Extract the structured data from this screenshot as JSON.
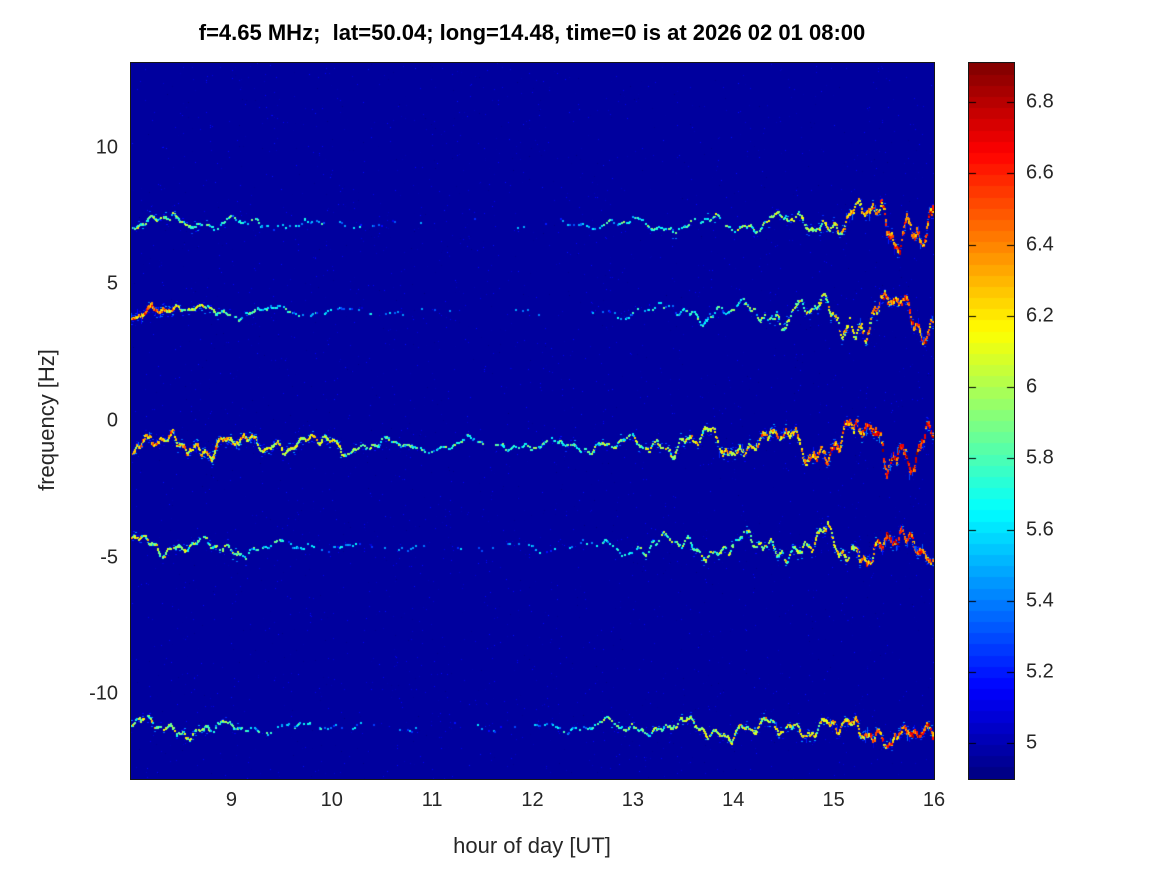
{
  "chart_data": {
    "type": "heatmap",
    "subtype": "doppler-shift-spectrogram",
    "title": "f=4.65 MHz;  lat=50.04; long=14.48, time=0 is at 2026 02 01 08:00",
    "xlabel": "hour of day [UT]",
    "ylabel": "frequency [Hz]",
    "xlim": [
      8,
      16
    ],
    "ylim": [
      -13.1,
      13.1
    ],
    "xticks": [
      9,
      10,
      11,
      12,
      13,
      14,
      15,
      16
    ],
    "yticks": [
      10,
      5,
      0,
      -5,
      -10
    ],
    "grid": false,
    "legend": "none",
    "colormap": "jet",
    "figure_background": "#ffffff",
    "plot_background_navy": "#0b0b9c",
    "axis_color": "#262626",
    "colorbar": {
      "position": "right",
      "min": 4.9,
      "max": 6.91,
      "ticks": [
        5,
        5.2,
        5.4,
        5.6,
        5.8,
        6,
        6.2,
        6.4,
        6.6,
        6.8
      ],
      "levels": 64
    },
    "noise_floor_value": 4.96,
    "traces_note": "five horizontal wavy Doppler traces; points are [hour, freq_offset_Hz, intensity_0to1, wiggle_amp_Hz] read from image",
    "traces": [
      {
        "name": "trace-plus7Hz",
        "center_hz": 7.2,
        "points": [
          [
            8.0,
            0.1,
            0.5,
            0.15
          ],
          [
            8.8,
            0.05,
            0.42,
            0.15
          ],
          [
            9.6,
            0.0,
            0.28,
            0.12
          ],
          [
            10.6,
            0.0,
            0.13,
            0.1
          ],
          [
            11.8,
            0.0,
            0.1,
            0.1
          ],
          [
            12.7,
            0.0,
            0.32,
            0.1
          ],
          [
            13.6,
            0.0,
            0.45,
            0.15
          ],
          [
            14.5,
            0.0,
            0.5,
            0.2
          ],
          [
            15.0,
            0.0,
            0.6,
            0.3
          ],
          [
            15.4,
            0.1,
            0.75,
            0.45
          ],
          [
            15.65,
            0.3,
            0.85,
            0.6
          ],
          [
            15.8,
            -0.5,
            0.8,
            0.5
          ],
          [
            16.0,
            -0.1,
            0.9,
            0.5
          ]
        ]
      },
      {
        "name": "trace-plus4Hz",
        "center_hz": 4.0,
        "points": [
          [
            8.0,
            -0.3,
            0.78,
            0.2
          ],
          [
            8.25,
            0.3,
            0.8,
            0.2
          ],
          [
            8.5,
            0.0,
            0.6,
            0.15
          ],
          [
            9.3,
            0.0,
            0.35,
            0.12
          ],
          [
            10.3,
            0.0,
            0.2,
            0.1
          ],
          [
            11.5,
            0.0,
            0.1,
            0.08
          ],
          [
            12.6,
            0.0,
            0.15,
            0.1
          ],
          [
            13.4,
            0.0,
            0.35,
            0.2
          ],
          [
            14.2,
            0.0,
            0.45,
            0.25
          ],
          [
            14.8,
            0.0,
            0.55,
            0.35
          ],
          [
            15.3,
            0.0,
            0.7,
            0.55
          ],
          [
            15.6,
            0.2,
            0.8,
            0.6
          ],
          [
            15.9,
            -0.3,
            0.85,
            0.4
          ],
          [
            16.0,
            -0.2,
            0.8,
            0.3
          ]
        ]
      },
      {
        "name": "trace-minus1Hz",
        "center_hz": -0.9,
        "points": [
          [
            8.0,
            0.0,
            0.72,
            0.3
          ],
          [
            9.0,
            0.0,
            0.68,
            0.25
          ],
          [
            10.0,
            0.0,
            0.58,
            0.2
          ],
          [
            10.8,
            0.0,
            0.4,
            0.15
          ],
          [
            11.8,
            0.0,
            0.35,
            0.15
          ],
          [
            12.8,
            0.0,
            0.5,
            0.2
          ],
          [
            13.6,
            0.0,
            0.6,
            0.3
          ],
          [
            14.4,
            0.0,
            0.7,
            0.35
          ],
          [
            15.0,
            0.0,
            0.8,
            0.45
          ],
          [
            15.5,
            0.0,
            0.9,
            0.6
          ],
          [
            15.8,
            -0.2,
            0.95,
            0.55
          ],
          [
            16.0,
            0.0,
            0.9,
            0.45
          ]
        ]
      },
      {
        "name": "trace-minus4p6Hz",
        "center_hz": -4.6,
        "points": [
          [
            8.0,
            0.2,
            0.6,
            0.2
          ],
          [
            8.8,
            -0.1,
            0.48,
            0.2
          ],
          [
            9.8,
            0.0,
            0.25,
            0.12
          ],
          [
            11.0,
            0.0,
            0.15,
            0.1
          ],
          [
            12.2,
            0.0,
            0.2,
            0.12
          ],
          [
            13.0,
            0.0,
            0.4,
            0.2
          ],
          [
            13.8,
            0.0,
            0.5,
            0.25
          ],
          [
            14.6,
            0.0,
            0.55,
            0.3
          ],
          [
            15.2,
            0.0,
            0.65,
            0.4
          ],
          [
            15.6,
            0.1,
            0.9,
            0.45
          ],
          [
            15.8,
            -0.2,
            0.85,
            0.35
          ],
          [
            16.0,
            -0.3,
            0.7,
            0.3
          ]
        ]
      },
      {
        "name": "trace-minus11Hz",
        "center_hz": -11.2,
        "points": [
          [
            8.0,
            0.1,
            0.55,
            0.2
          ],
          [
            8.7,
            -0.1,
            0.5,
            0.2
          ],
          [
            9.5,
            0.0,
            0.3,
            0.12
          ],
          [
            10.6,
            0.0,
            0.15,
            0.1
          ],
          [
            11.8,
            0.0,
            0.15,
            0.1
          ],
          [
            12.8,
            0.0,
            0.45,
            0.15
          ],
          [
            13.6,
            0.0,
            0.55,
            0.2
          ],
          [
            14.4,
            0.0,
            0.6,
            0.25
          ],
          [
            15.0,
            -0.1,
            0.65,
            0.3
          ],
          [
            15.5,
            -0.2,
            0.8,
            0.35
          ],
          [
            15.8,
            -0.3,
            0.85,
            0.35
          ],
          [
            16.0,
            -0.4,
            0.8,
            0.3
          ]
        ]
      }
    ]
  }
}
